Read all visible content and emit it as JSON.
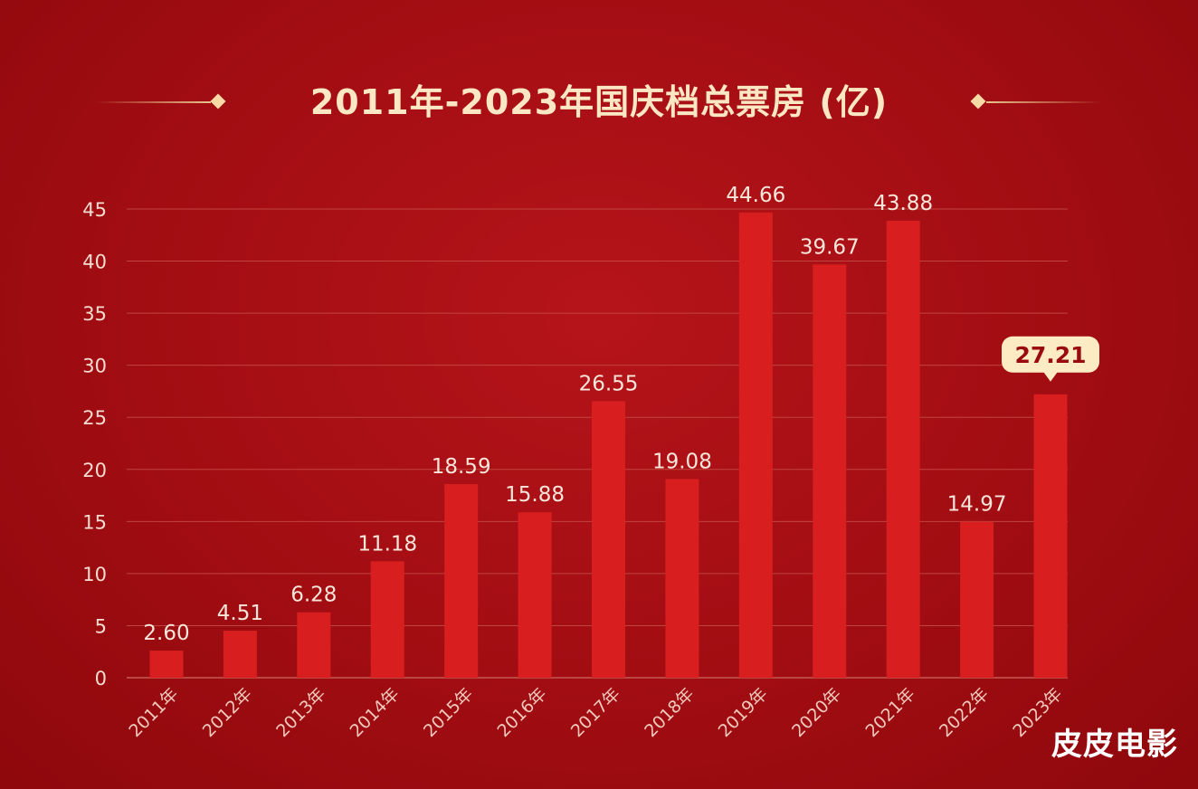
{
  "chart_data": {
    "type": "bar",
    "title": "2011年-2023年国庆档总票房 (亿)",
    "categories": [
      "2011年",
      "2012年",
      "2013年",
      "2014年",
      "2015年",
      "2016年",
      "2017年",
      "2018年",
      "2019年",
      "2020年",
      "2021年",
      "2022年",
      "2023年"
    ],
    "values": [
      2.6,
      4.51,
      6.28,
      11.18,
      18.59,
      15.88,
      26.55,
      19.08,
      44.66,
      39.67,
      43.88,
      14.97,
      27.21
    ],
    "value_labels": [
      "2.60",
      "4.51",
      "6.28",
      "11.18",
      "18.59",
      "15.88",
      "26.55",
      "19.08",
      "44.66",
      "39.67",
      "43.88",
      "14.97",
      "27.21"
    ],
    "ylim": [
      0,
      45
    ],
    "yticks": [
      "0",
      "5",
      "10",
      "15",
      "20",
      "25",
      "30",
      "35",
      "40",
      "45"
    ],
    "grid": true,
    "highlight_index": 12
  },
  "watermark": "皮皮电影",
  "colors": {
    "bar": "#d81e1e",
    "grid": "#c0453f",
    "title": "#fbe7c4",
    "highlight_bg": "#fdebc4"
  }
}
